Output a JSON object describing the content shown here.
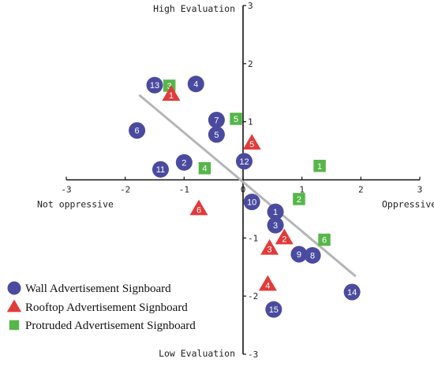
{
  "chart_data": {
    "type": "scatter",
    "title": "",
    "xlim": [
      -3,
      3
    ],
    "ylim": [
      -3,
      3
    ],
    "x_ticks": [
      -3,
      -2,
      -1,
      0,
      1,
      2,
      3
    ],
    "y_ticks": [
      -3,
      -2,
      -1,
      1,
      2,
      3
    ],
    "x_tick_labels": [
      "-3",
      "-2",
      "-1",
      "0",
      "1",
      "2",
      "3"
    ],
    "y_tick_labels": [
      "-3",
      "-2",
      "-1",
      "1",
      "2",
      "3"
    ],
    "axis_labels": {
      "top": "High Evaluation",
      "bottom": "Low Evaluation",
      "left": "Not oppressive",
      "right": "Oppressive"
    },
    "trend_line": {
      "from": [
        -1.75,
        1.45
      ],
      "to": [
        1.9,
        -1.65
      ],
      "color": "#b4b6b8"
    },
    "series": [
      {
        "name": "Wall Advertisement Signboard",
        "marker": "circle",
        "color": "#4a4a9f",
        "points": [
          {
            "label": "1",
            "x": 0.55,
            "y": -0.55
          },
          {
            "label": "2",
            "x": -1.0,
            "y": 0.3
          },
          {
            "label": "3",
            "x": 0.55,
            "y": -0.78
          },
          {
            "label": "4",
            "x": -0.8,
            "y": 1.65
          },
          {
            "label": "5",
            "x": -0.45,
            "y": 0.78
          },
          {
            "label": "6",
            "x": -1.8,
            "y": 0.85
          },
          {
            "label": "7",
            "x": -0.45,
            "y": 1.03
          },
          {
            "label": "8",
            "x": 1.18,
            "y": -1.3
          },
          {
            "label": "9",
            "x": 0.95,
            "y": -1.28
          },
          {
            "label": "10",
            "x": 0.15,
            "y": -0.38
          },
          {
            "label": "11",
            "x": -1.4,
            "y": 0.18
          },
          {
            "label": "12",
            "x": 0.02,
            "y": 0.32
          },
          {
            "label": "13",
            "x": -1.5,
            "y": 1.63
          },
          {
            "label": "14",
            "x": 1.85,
            "y": -1.93
          },
          {
            "label": "15",
            "x": 0.52,
            "y": -2.23
          }
        ]
      },
      {
        "name": "Rooftop Advertisement Signboard",
        "marker": "triangle",
        "color": "#e23a3a",
        "points": [
          {
            "label": "1",
            "x": -1.22,
            "y": 1.47
          },
          {
            "label": "2",
            "x": 0.7,
            "y": -1.0
          },
          {
            "label": "3",
            "x": 0.45,
            "y": -1.18
          },
          {
            "label": "4",
            "x": 0.42,
            "y": -1.8
          },
          {
            "label": "5",
            "x": 0.15,
            "y": 0.63
          },
          {
            "label": "6",
            "x": -0.75,
            "y": -0.5
          }
        ]
      },
      {
        "name": "Protruded Advertisement Signboard",
        "marker": "square",
        "color": "#56b64a",
        "points": [
          {
            "label": "1",
            "x": 1.3,
            "y": 0.24
          },
          {
            "label": "2",
            "x": 0.95,
            "y": -0.33
          },
          {
            "label": "3",
            "x": -1.25,
            "y": 1.62
          },
          {
            "label": "4",
            "x": -0.65,
            "y": 0.2
          },
          {
            "label": "5",
            "x": -0.12,
            "y": 1.05
          },
          {
            "label": "6",
            "x": 1.38,
            "y": -1.03
          }
        ]
      }
    ]
  }
}
